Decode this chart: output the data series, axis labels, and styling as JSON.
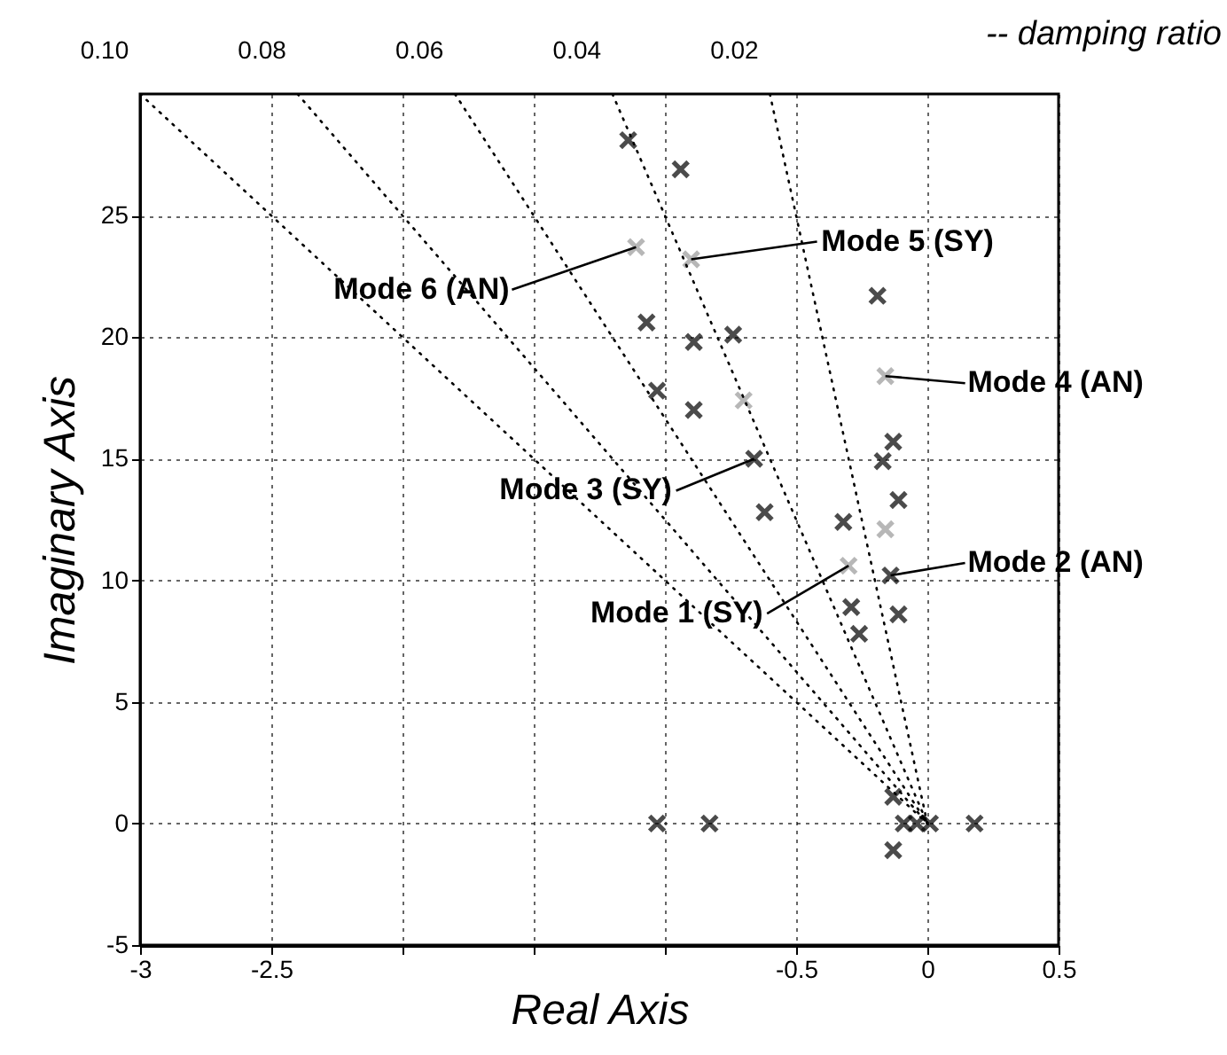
{
  "chart_data": {
    "type": "scatter",
    "xlabel": "Real  Axis",
    "ylabel": "Imaginary  Axis",
    "xlim": [
      -3,
      0.5
    ],
    "ylim": [
      -5,
      30
    ],
    "xticks": [
      -3,
      -2.5,
      {
        "value": -2,
        "label": null
      },
      {
        "value": -1.5,
        "label": null
      },
      {
        "value": -1,
        "label": null
      },
      -0.5,
      0,
      0.5
    ],
    "yticks": [
      -5,
      0,
      5,
      10,
      15,
      20,
      25
    ],
    "grid": true,
    "marker": "cross",
    "series": [
      {
        "color": "#000000",
        "x": [
          -1.14,
          -1.07,
          -1.03,
          -0.94,
          -0.89,
          -0.89,
          -0.74,
          -0.66,
          -0.62,
          -0.19,
          -0.13,
          -0.17,
          -0.11,
          -0.14,
          -0.11,
          -0.32,
          -0.29,
          -0.26,
          -1.03,
          -0.83,
          -0.13,
          -0.13,
          -0.09,
          -0.04,
          0.01,
          0.18
        ],
        "values": [
          28.1,
          20.6,
          17.8,
          26.9,
          19.8,
          17.0,
          20.1,
          15.0,
          12.8,
          21.7,
          15.7,
          14.9,
          13.3,
          10.2,
          8.6,
          12.4,
          8.9,
          7.8,
          0,
          0,
          1.1,
          -1.1,
          0,
          0,
          0,
          0
        ]
      },
      {
        "color": "#999999",
        "x": [
          -1.11,
          -0.9,
          -0.7,
          -0.16,
          -0.16,
          -0.3
        ],
        "values": [
          23.7,
          23.2,
          17.4,
          18.4,
          12.1,
          10.6
        ]
      },
      {
        "type": "line",
        "name": "0.10",
        "marker": "none",
        "color": "#000000",
        "line_style": "dotted",
        "x": [
          -3,
          0
        ],
        "values": [
          30,
          0
        ]
      },
      {
        "type": "line",
        "name": "0.08",
        "marker": "none",
        "color": "#000000",
        "line_style": "dotted",
        "x": [
          -2.4,
          0
        ],
        "values": [
          30,
          0
        ]
      },
      {
        "type": "line",
        "name": "0.06",
        "marker": "none",
        "color": "#000000",
        "line_style": "dotted",
        "x": [
          -1.8,
          0
        ],
        "values": [
          30,
          0
        ]
      },
      {
        "type": "line",
        "name": "0.04",
        "marker": "none",
        "color": "#000000",
        "line_style": "dotted",
        "x": [
          -1.2,
          0
        ],
        "values": [
          30,
          0
        ]
      },
      {
        "type": "line",
        "name": "0.02",
        "marker": "none",
        "color": "#000000",
        "line_style": "dotted",
        "x": [
          -0.6,
          0
        ],
        "values": [
          30,
          0
        ]
      }
    ],
    "annotations": [
      {
        "text": "Mode 6 (AN)",
        "x": -1.11,
        "y": 23.7
      },
      {
        "text": "Mode 5 (SY)",
        "x": -0.9,
        "y": 23.2
      },
      {
        "text": "Mode 3 (SY)",
        "x": -0.66,
        "y": 15.0
      },
      {
        "text": "Mode 4 (AN)",
        "x": -0.16,
        "y": 18.4
      },
      {
        "text": "Mode 2 (AN)",
        "x": -0.14,
        "y": 10.2
      },
      {
        "text": "Mode 1 (SY)",
        "x": -0.3,
        "y": 10.6
      },
      "-- damping ratio"
    ]
  }
}
